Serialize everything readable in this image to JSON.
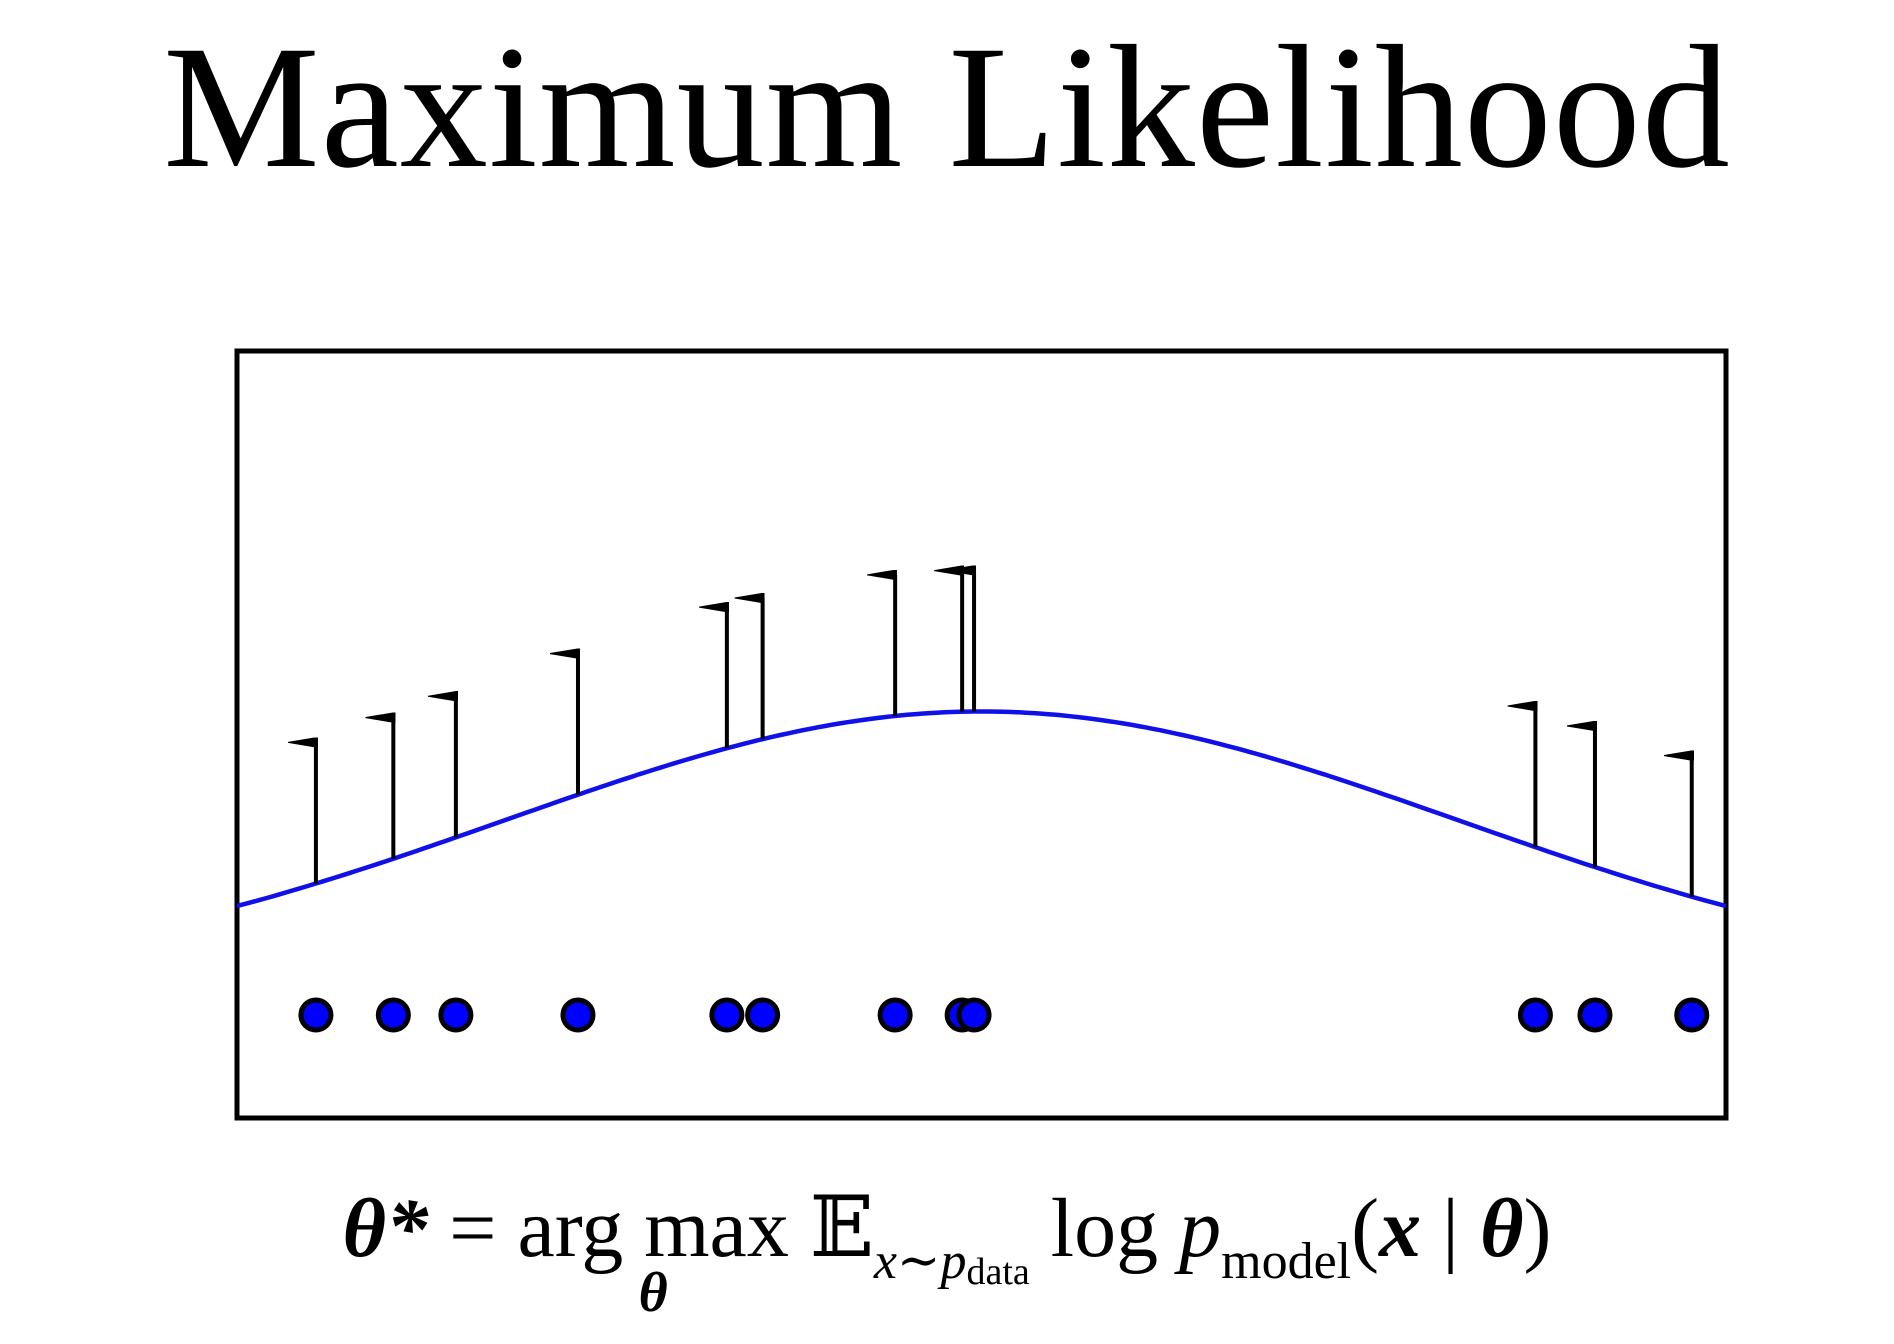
{
  "title": "Maximum Likelihood",
  "formula": {
    "theta_star": "θ*",
    "equals": "=",
    "argmax": "arg max",
    "argmax_sub": "θ",
    "expectation": "𝔼",
    "expectation_sub_x": "x∼p",
    "expectation_sub_data": "data",
    "log": "log",
    "p": "p",
    "p_sub": "model",
    "open_paren": "(",
    "x": "x",
    "bar": "|",
    "theta": "θ",
    "close_paren": ")"
  },
  "colors": {
    "curve": "#1010e8",
    "points": "#0000ff",
    "arrows": "#000000",
    "frame": "#000000"
  },
  "chart_data": {
    "type": "scatter",
    "description_marks": "data points on x-axis with arrows pushing density up",
    "xlim": [
      0,
      1
    ],
    "ylim": [
      0,
      1
    ],
    "curve": {
      "kind": "gaussian",
      "mean": 0.5,
      "std": 0.32,
      "baseline": 0.17,
      "peak": 0.53
    },
    "points_x": [
      0.053,
      0.105,
      0.147,
      0.229,
      0.329,
      0.353,
      0.442,
      0.487,
      0.495,
      0.872,
      0.912,
      0.977
    ],
    "arrow_lengths": [
      0.23,
      0.23,
      0.23,
      0.23,
      0.23,
      0.23,
      0.23,
      0.23,
      0.23,
      0.23,
      0.23,
      0.23
    ]
  }
}
